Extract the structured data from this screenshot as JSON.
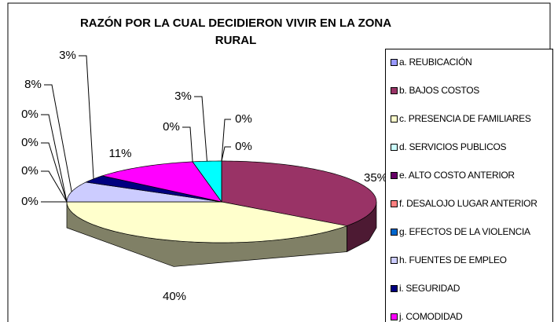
{
  "chart_data": {
    "type": "pie",
    "title": "RAZÓN POR LA CUAL DECIDIERON VIVIR EN LA ZONA RURAL",
    "categories": [
      "a. REUBICACIÓN",
      "b. BAJOS COSTOS",
      "c. PRESENCIA DE FAMILIARES",
      "d. SERVICIOS PUBLICOS",
      "e. ALTO COSTO ANTERIOR",
      "f. DESALOJO LUGAR ANTERIOR",
      "g. EFECTOS DE LA VIOLENCIA",
      "h. FUENTES DE EMPLEO",
      "i. SEGURIDAD",
      "j. COMODIDAD",
      null,
      null,
      null
    ],
    "values": [
      0,
      35,
      40,
      0,
      0,
      0,
      0,
      8,
      3,
      11,
      0,
      3,
      0
    ],
    "value_labels": [
      "0%",
      "35%",
      "40%",
      "0%",
      "0%",
      "0%",
      "0%",
      "8%",
      "3%",
      "11%",
      "0%",
      "3%",
      "0%"
    ],
    "colors": [
      "#9999FF",
      "#993366",
      "#FFFFCC",
      "#CCFFFF",
      "#660066",
      "#FF8080",
      "#0066CC",
      "#CCCCFF",
      "#000080",
      "#FF00FF",
      "#FFFF00",
      "#00FFFF",
      "#800000"
    ],
    "legend": "right"
  }
}
